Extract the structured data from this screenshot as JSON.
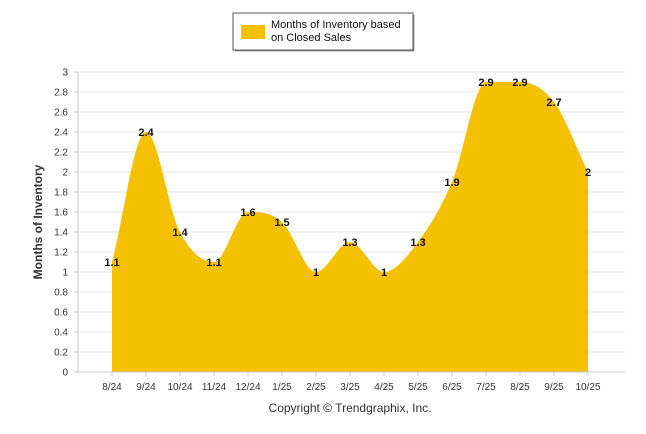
{
  "chart_data": {
    "type": "area",
    "categories": [
      "8/24",
      "9/24",
      "10/24",
      "11/24",
      "12/24",
      "1/25",
      "2/25",
      "3/25",
      "4/25",
      "5/25",
      "6/25",
      "7/25",
      "8/25",
      "9/25",
      "10/25"
    ],
    "series": [
      {
        "name": "Months of Inventory based on Closed Sales",
        "values": [
          1.1,
          2.4,
          1.4,
          1.1,
          1.6,
          1.5,
          1,
          1.3,
          1,
          1.3,
          1.9,
          2.9,
          2.9,
          2.7,
          2
        ]
      }
    ],
    "ylabel": "Months of Inventory",
    "xlabel": "",
    "ylim": [
      0,
      3
    ],
    "yticks": [
      0,
      0.2,
      0.4,
      0.6,
      0.8,
      1,
      1.2,
      1.4,
      1.6,
      1.8,
      2,
      2.2,
      2.4,
      2.6,
      2.8,
      3
    ],
    "grid": true,
    "legend_position": "top",
    "area_color": "#F5C000",
    "data_labels": [
      "1.1",
      "2.4",
      "1.4",
      "1.1",
      "1.6",
      "1.5",
      "1",
      "1.3",
      "1",
      "1.3",
      "1.9",
      "2.9",
      "2.9",
      "2.7",
      "2"
    ]
  },
  "legend": {
    "line1": "Months of Inventory based",
    "line2": "on Closed Sales"
  },
  "footer": {
    "copyright": "Copyright © Trendgraphix, Inc."
  }
}
